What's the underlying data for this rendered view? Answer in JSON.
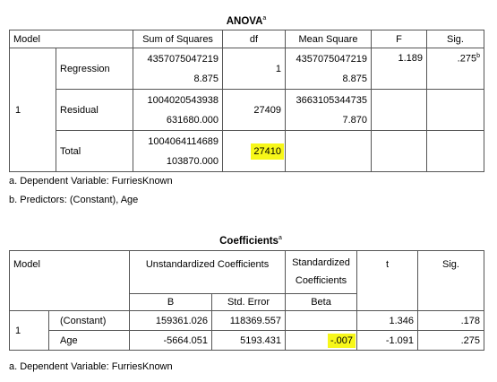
{
  "anova": {
    "title": "ANOVA",
    "title_sup": "a",
    "headers": {
      "model": "Model",
      "sum_of_squares": "Sum of Squares",
      "df": "df",
      "mean_square": "Mean Square",
      "f": "F",
      "sig": "Sig."
    },
    "model_number": "1",
    "rows": {
      "regression": {
        "label": "Regression",
        "ss_line1": "4357075047219",
        "ss_line2": "8.875",
        "df": "1",
        "ms_line1": "4357075047219",
        "ms_line2": "8.875",
        "f": "1.189",
        "sig": ".275",
        "sig_sup": "b"
      },
      "residual": {
        "label": "Residual",
        "ss_line1": "1004020543938",
        "ss_line2": "631680.000",
        "df": "27409",
        "ms_line1": "3663105344735",
        "ms_line2": "7.870"
      },
      "total": {
        "label": "Total",
        "ss_line1": "1004064114689",
        "ss_line2": "103870.000",
        "df": "27410"
      }
    },
    "footnotes": {
      "a": "a. Dependent Variable: FurriesKnown",
      "b": "b. Predictors: (Constant), Age"
    }
  },
  "coefficients": {
    "title": "Coefficients",
    "title_sup": "a",
    "headers": {
      "model": "Model",
      "unstandardized": "Unstandardized Coefficients",
      "standardized_line1": "Standardized",
      "standardized_line2": "Coefficients",
      "t": "t",
      "sig": "Sig.",
      "b": "B",
      "std_error": "Std. Error",
      "beta": "Beta"
    },
    "model_number": "1",
    "rows": [
      {
        "label": "(Constant)",
        "b": "159361.026",
        "std_error": "118369.557",
        "beta": "",
        "t": "1.346",
        "sig": ".178"
      },
      {
        "label": "Age",
        "b": "-5664.051",
        "std_error": "5193.431",
        "beta": "-.007",
        "t": "-1.091",
        "sig": ".275"
      }
    ],
    "footnote": "a. Dependent Variable: FurriesKnown"
  },
  "colors": {
    "highlight": "#f7f719",
    "border": "#555555"
  }
}
